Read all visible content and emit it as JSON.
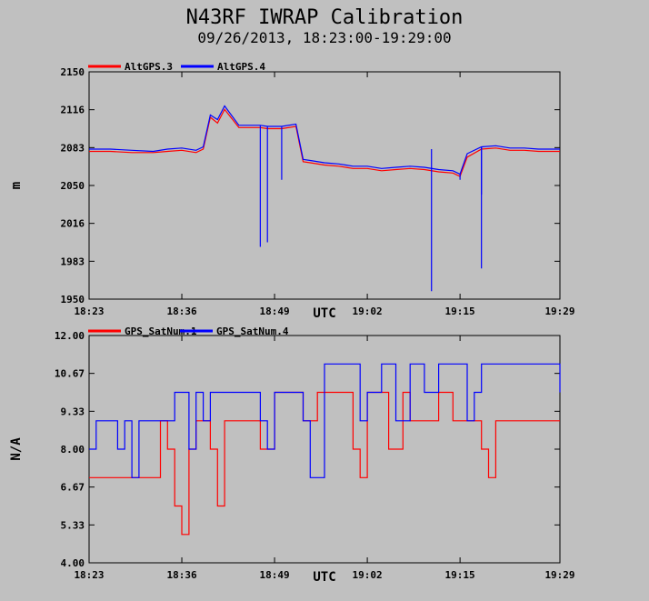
{
  "title": "N43RF IWRAP Calibration",
  "subtitle": "09/26/2013, 18:23:00-19:29:00",
  "chart_data": [
    {
      "type": "line",
      "ylabel": "m",
      "xlabel": "UTC",
      "ylim": [
        1950,
        2150
      ],
      "yticks": [
        "2150",
        "2116",
        "2083",
        "2050",
        "2016",
        "1983",
        "1950"
      ],
      "xlim": [
        "18:23",
        "19:29"
      ],
      "xticks": [
        "18:23",
        "18:36",
        "18:49",
        "19:02",
        "19:15",
        "19:29"
      ],
      "legend_position": "top-left",
      "series": [
        {
          "name": "AltGPS.3",
          "color": "#ff0000",
          "x": [
            "18:23",
            "18:26",
            "18:29",
            "18:32",
            "18:34",
            "18:36",
            "18:38",
            "18:39",
            "18:40",
            "18:41",
            "18:42",
            "18:44",
            "18:46",
            "18:47",
            "18:48",
            "18:50",
            "18:52",
            "18:53",
            "18:54",
            "18:56",
            "18:58",
            "19:00",
            "19:02",
            "19:04",
            "19:06",
            "19:08",
            "19:10",
            "19:12",
            "19:14",
            "19:15",
            "19:16",
            "19:18",
            "19:20",
            "19:22",
            "19:24",
            "19:26",
            "19:29"
          ],
          "values": [
            2080,
            2080,
            2079,
            2079,
            2080,
            2081,
            2079,
            2082,
            2110,
            2105,
            2117,
            2101,
            2101,
            2101,
            2100,
            2100,
            2102,
            2071,
            2070,
            2068,
            2067,
            2065,
            2065,
            2063,
            2064,
            2065,
            2064,
            2062,
            2061,
            2058,
            2075,
            2082,
            2083,
            2081,
            2081,
            2080,
            2080
          ]
        },
        {
          "name": "AltGPS.4",
          "color": "#0000ff",
          "x": [
            "18:23",
            "18:26",
            "18:29",
            "18:32",
            "18:34",
            "18:36",
            "18:38",
            "18:39",
            "18:40",
            "18:41",
            "18:42",
            "18:44",
            "18:46",
            "18:47",
            "18:48",
            "18:50",
            "18:52",
            "18:53",
            "18:54",
            "18:56",
            "18:58",
            "19:00",
            "19:02",
            "19:04",
            "19:06",
            "19:08",
            "19:10",
            "19:12",
            "19:14",
            "19:15",
            "19:16",
            "19:18",
            "19:20",
            "19:22",
            "19:24",
            "19:26",
            "19:29"
          ],
          "values": [
            2082,
            2082,
            2081,
            2080,
            2082,
            2083,
            2081,
            2084,
            2112,
            2108,
            2120,
            2103,
            2103,
            2103,
            2102,
            2102,
            2104,
            2073,
            2072,
            2070,
            2069,
            2067,
            2067,
            2065,
            2066,
            2067,
            2066,
            2064,
            2063,
            2060,
            2078,
            2084,
            2085,
            2083,
            2083,
            2082,
            2082
          ],
          "spikes": [
            {
              "x": "18:47",
              "value": 1996
            },
            {
              "x": "18:48",
              "value": 2000
            },
            {
              "x": "18:50",
              "value": 2055
            },
            {
              "x": "19:11",
              "value": 1957
            },
            {
              "x": "19:15",
              "value": 2055
            },
            {
              "x": "19:18",
              "value": 2042
            },
            {
              "x": "19:18",
              "value": 1977
            }
          ]
        }
      ]
    },
    {
      "type": "line",
      "ylabel": "N/A",
      "xlabel": "UTC",
      "ylim": [
        4,
        12
      ],
      "yticks": [
        "12.00",
        "10.67",
        "9.33",
        "8.00",
        "6.67",
        "5.33",
        "4.00"
      ],
      "xlim": [
        "18:23",
        "19:29"
      ],
      "xticks": [
        "18:23",
        "18:36",
        "18:49",
        "19:02",
        "19:15",
        "19:29"
      ],
      "legend_position": "top-left",
      "series": [
        {
          "name": "GPS_SatNum.1",
          "color": "#ff0000",
          "x": [
            "18:23",
            "18:32",
            "18:33",
            "18:34",
            "18:35",
            "18:36",
            "18:37",
            "18:38",
            "18:39",
            "18:40",
            "18:41",
            "18:42",
            "18:43",
            "18:44",
            "18:45",
            "18:46",
            "18:47",
            "18:48",
            "18:49",
            "18:50",
            "18:52",
            "18:53",
            "18:54",
            "18:55",
            "18:56",
            "18:57",
            "18:58",
            "18:59",
            "19:00",
            "19:01",
            "19:02",
            "19:03",
            "19:04",
            "19:05",
            "19:06",
            "19:07",
            "19:08",
            "19:09",
            "19:10",
            "19:11",
            "19:12",
            "19:13",
            "19:14",
            "19:15",
            "19:16",
            "19:17",
            "19:18",
            "19:19",
            "19:20",
            "19:21",
            "19:22",
            "19:23",
            "19:25",
            "19:27",
            "19:29"
          ],
          "values": [
            7,
            7,
            9,
            8,
            6,
            5,
            8,
            9,
            9,
            8,
            6,
            9,
            9,
            9,
            9,
            9,
            8,
            8,
            10,
            10,
            10,
            9,
            9,
            10,
            10,
            10,
            10,
            10,
            8,
            7,
            10,
            10,
            10,
            8,
            8,
            10,
            9,
            9,
            9,
            9,
            10,
            10,
            9,
            9,
            9,
            9,
            8,
            7,
            9,
            9,
            9,
            9,
            9,
            9,
            9
          ]
        },
        {
          "name": "GPS_SatNum.4",
          "color": "#0000ff",
          "x": [
            "18:23",
            "18:24",
            "18:26",
            "18:27",
            "18:28",
            "18:29",
            "18:30",
            "18:32",
            "18:34",
            "18:35",
            "18:36",
            "18:37",
            "18:38",
            "18:39",
            "18:40",
            "18:41",
            "18:42",
            "18:44",
            "18:46",
            "18:47",
            "18:48",
            "18:49",
            "18:50",
            "18:52",
            "18:53",
            "18:54",
            "18:56",
            "18:58",
            "19:00",
            "19:01",
            "19:02",
            "19:04",
            "19:05",
            "19:06",
            "19:07",
            "19:08",
            "19:09",
            "19:10",
            "19:12",
            "19:14",
            "19:15",
            "19:16",
            "19:17",
            "19:18",
            "19:20",
            "19:22",
            "19:24",
            "19:26",
            "19:28",
            "19:29"
          ],
          "values": [
            8,
            9,
            9,
            8,
            9,
            7,
            9,
            9,
            9,
            10,
            10,
            8,
            10,
            9,
            10,
            10,
            10,
            10,
            10,
            9,
            8,
            10,
            10,
            10,
            9,
            7,
            11,
            11,
            11,
            9,
            10,
            11,
            11,
            9,
            9,
            11,
            11,
            10,
            11,
            11,
            11,
            9,
            10,
            11,
            11,
            11,
            11,
            11,
            11,
            10
          ]
        }
      ]
    }
  ]
}
